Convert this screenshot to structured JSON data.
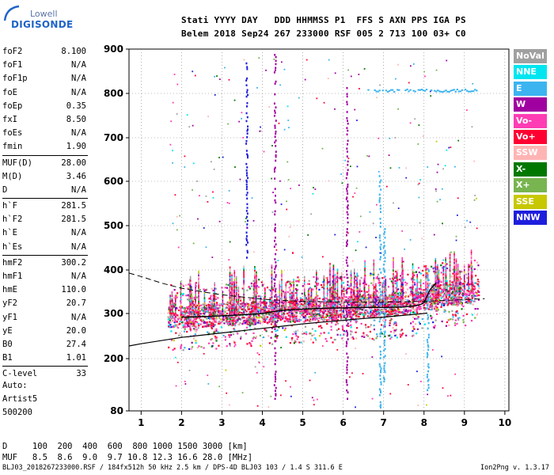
{
  "logo": {
    "top": "Lowell",
    "main": "DIGISONDE"
  },
  "header": {
    "labels": "Stati YYYY DAY   DDD HHMMSS P1  FFS S AXN PPS IGA PS",
    "values": "Belem 2018 Sep24 267 233000 RSF 005 2 713 100 03+ C0"
  },
  "params": [
    {
      "name": "foF2",
      "value": "8.100"
    },
    {
      "name": "foF1",
      "value": "N/A"
    },
    {
      "name": "foF1p",
      "value": "N/A"
    },
    {
      "name": "foE",
      "value": "N/A"
    },
    {
      "name": "foEp",
      "value": "0.35"
    },
    {
      "name": "fxI",
      "value": "8.50"
    },
    {
      "name": "foEs",
      "value": "N/A"
    },
    {
      "name": "fmin",
      "value": "1.90"
    },
    {
      "name": "MUF(D)",
      "value": "28.00"
    },
    {
      "name": "M(D)",
      "value": "3.46"
    },
    {
      "name": "D",
      "value": "N/A"
    },
    {
      "name": "h`F",
      "value": "281.5"
    },
    {
      "name": "h`F2",
      "value": "281.5"
    },
    {
      "name": "h`E",
      "value": "N/A"
    },
    {
      "name": "h`Es",
      "value": "N/A"
    },
    {
      "name": "hmF2",
      "value": "300.2"
    },
    {
      "name": "hmF1",
      "value": "N/A"
    },
    {
      "name": "hmE",
      "value": "110.0"
    },
    {
      "name": "yF2",
      "value": "20.7"
    },
    {
      "name": "yF1",
      "value": "N/A"
    },
    {
      "name": "yE",
      "value": "20.0"
    },
    {
      "name": "B0",
      "value": "27.4"
    },
    {
      "name": "B1",
      "value": "1.01"
    },
    {
      "name": "C-level",
      "value": "33"
    }
  ],
  "auto": {
    "line1": "Auto:",
    "line2": "Artist5",
    "line3": "500200"
  },
  "legend": [
    {
      "name": "NoVal",
      "color": "#a0a0a0"
    },
    {
      "name": "NNE",
      "color": "#00e6f0"
    },
    {
      "name": "E",
      "color": "#3cb4f0"
    },
    {
      "name": "W",
      "color": "#a000a0"
    },
    {
      "name": "Vo-",
      "color": "#ff3cb4"
    },
    {
      "name": "Vo+",
      "color": "#ff0032"
    },
    {
      "name": "SSW",
      "color": "#ffb4b4"
    },
    {
      "name": "X-",
      "color": "#007800"
    },
    {
      "name": "X+",
      "color": "#78b450"
    },
    {
      "name": "SSE",
      "color": "#c8c800"
    },
    {
      "name": "NNW",
      "color": "#1e1edc"
    }
  ],
  "dmuf": {
    "d_line": "D     100  200  400  600  800 1000 1500 3000 [km]",
    "muf_line": "MUF   8.5  8.6  9.0  9.7 10.8 12.3 16.6 28.0 [MHz]"
  },
  "footer": {
    "left": "BLJ03_2018267233000.RSF / 184fx512h 50 kHz 2.5 km / DPS-4D BLJ03 103 / 1.4 S 311.6 E",
    "right": "Ion2Png v. 1.3.17"
  },
  "chart_data": {
    "type": "scatter",
    "xlim": [
      0.7,
      10.1
    ],
    "ylim": [
      80,
      900
    ],
    "x_ticks": [
      1,
      2,
      3,
      4,
      5,
      6,
      7,
      8,
      9,
      10
    ],
    "y_ticks": [
      80,
      200,
      300,
      400,
      500,
      600,
      700,
      800,
      900
    ],
    "y_scale": "nonlinear",
    "grid": true,
    "profile": {
      "x": [
        0.7,
        1.0,
        1.5,
        2.0,
        2.5,
        3.0,
        3.5,
        4.0,
        4.5,
        5.0,
        5.5,
        6.0,
        6.5,
        7.0,
        7.5,
        8.0,
        8.08
      ],
      "y": [
        228,
        233,
        240,
        247,
        252,
        257,
        262,
        267,
        272,
        277,
        281,
        285,
        289,
        292,
        296,
        300,
        301
      ]
    },
    "trace": {
      "x": [
        2.0,
        2.5,
        3.0,
        3.5,
        4.0,
        4.3,
        4.6,
        5.0,
        5.5,
        6.0,
        6.5,
        7.0,
        7.5,
        7.8,
        7.95,
        8.0,
        8.05,
        8.15,
        8.3
      ],
      "y": [
        292,
        293,
        295,
        297,
        300,
        305,
        308,
        310,
        312,
        313,
        314,
        314,
        315,
        318,
        322,
        325,
        335,
        355,
        370
      ]
    },
    "dashed": {
      "x": [
        0.7,
        1.0,
        1.5,
        2.0,
        2.5,
        3.0,
        3.5,
        4.0,
        4.5,
        5.0,
        5.5,
        6.0,
        6.5,
        7.0,
        7.5,
        8.0,
        8.5,
        9.0,
        9.5
      ],
      "y": [
        393,
        385,
        370,
        358,
        350,
        343,
        338,
        333,
        330,
        328,
        327,
        326,
        326,
        326,
        327,
        328,
        330,
        332,
        334
      ]
    },
    "echo_clusters": [
      {
        "x": 2.0,
        "yc": 295
      },
      {
        "x": 2.5,
        "yc": 298
      },
      {
        "x": 3.0,
        "yc": 300
      },
      {
        "x": 3.5,
        "yc": 302
      },
      {
        "x": 4.0,
        "yc": 305
      },
      {
        "x": 4.5,
        "yc": 308
      },
      {
        "x": 5.0,
        "yc": 310
      },
      {
        "x": 5.5,
        "yc": 312
      },
      {
        "x": 6.0,
        "yc": 315
      },
      {
        "x": 6.5,
        "yc": 318
      },
      {
        "x": 7.0,
        "yc": 320
      },
      {
        "x": 7.5,
        "yc": 325
      },
      {
        "x": 8.0,
        "yc": 335
      },
      {
        "x": 8.5,
        "yc": 345
      },
      {
        "x": 9.0,
        "yc": 350
      }
    ],
    "echo_columns": [
      {
        "x": 4.3,
        "ymin": 110,
        "ymax": 890,
        "color": "#a000a0"
      },
      {
        "x": 6.08,
        "ymin": 110,
        "ymax": 830,
        "color": "#a000a0"
      },
      {
        "x": 6.9,
        "ymin": 90,
        "ymax": 620,
        "color": "#3cb4f0"
      },
      {
        "x": 7.0,
        "ymin": 150,
        "ymax": 500,
        "color": "#3cb4f0"
      },
      {
        "x": 8.08,
        "ymin": 130,
        "ymax": 400,
        "color": "#3cb4f0"
      },
      {
        "x": 3.6,
        "ymin": 430,
        "ymax": 880,
        "color": "#1e1edc"
      }
    ],
    "upper_band": {
      "xmin": 6.6,
      "xmax": 9.3,
      "y": 808,
      "color": "#3cb4f0"
    }
  }
}
